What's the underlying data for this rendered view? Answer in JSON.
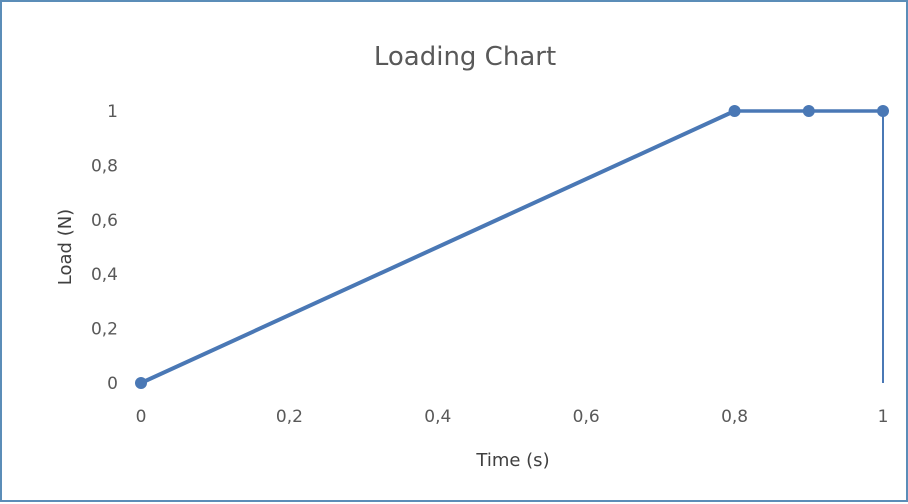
{
  "chart_data": {
    "type": "scatter",
    "title": "Loading Chart",
    "xlabel": "Time (s)",
    "ylabel": "Load (N)",
    "xlim": [
      0,
      1
    ],
    "ylim": [
      0,
      1
    ],
    "x_ticks": [
      "0",
      "0,2",
      "0,4",
      "0,6",
      "0,8",
      "1"
    ],
    "y_ticks": [
      "0",
      "0,2",
      "0,4",
      "0,6",
      "0,8",
      "1"
    ],
    "grid": false,
    "legend": "none",
    "series": [
      {
        "x": [
          0,
          0.8,
          0.9,
          1,
          1
        ],
        "y": [
          0,
          1,
          1,
          1,
          0
        ],
        "markers_on_points": [
          0,
          1,
          2,
          3
        ],
        "color": "#4a78b5"
      }
    ]
  }
}
